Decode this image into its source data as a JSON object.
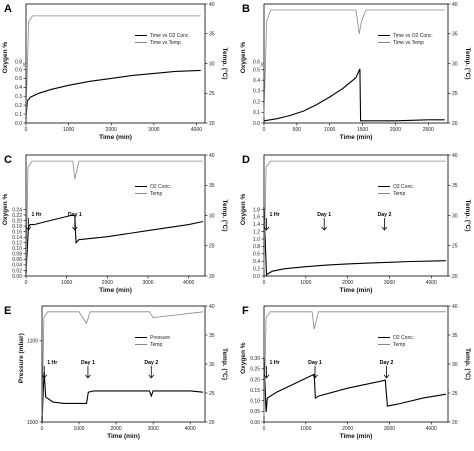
{
  "chart_data": [
    {
      "type": "line",
      "panel": "A",
      "xlabel": "Time (min)",
      "ylabel_left": "Oxygen %",
      "ylabel_right": "Temp. (°C)",
      "xlim": [
        0,
        4200
      ],
      "xticks": [
        0,
        1000,
        2000,
        3000,
        4000
      ],
      "left_axis": {
        "ticks": [
          "0.0",
          "0.1",
          "0.2",
          "0.3",
          "0.4",
          "0.5",
          "0.6"
        ],
        "extra_tick": "0.8",
        "ylim": [
          0,
          0.6
        ]
      },
      "right_axis": {
        "ticks": [
          "20",
          "25",
          "30",
          "35",
          "40"
        ],
        "ylim": [
          20,
          40
        ]
      },
      "legend": [
        "Time vs O2 Conc.",
        "Time vs Temp"
      ],
      "legend_position": "right",
      "series": [
        {
          "name": "Time vs O2 Conc.",
          "axis": "left",
          "color": "#000000",
          "x": [
            0,
            30,
            100,
            300,
            600,
            1000,
            1500,
            2000,
            2500,
            3000,
            3500,
            4100
          ],
          "y": [
            0.05,
            0.22,
            0.26,
            0.3,
            0.34,
            0.38,
            0.42,
            0.45,
            0.48,
            0.5,
            0.52,
            0.53
          ]
        },
        {
          "name": "Time vs Temp",
          "axis": "right",
          "color": "#888888",
          "x": [
            0,
            60,
            150,
            400,
            800,
            1500,
            2500,
            3500,
            4100
          ],
          "y": [
            21,
            37,
            38,
            38,
            38,
            38,
            38,
            38,
            38
          ]
        }
      ],
      "annotations": []
    },
    {
      "type": "line",
      "panel": "B",
      "xlabel": "Time (min)",
      "ylabel_left": "Oxygen %",
      "ylabel_right": "Temp. (°C)",
      "xlim": [
        0,
        2800
      ],
      "xticks": [
        0,
        500,
        1000,
        1500,
        2000,
        2500
      ],
      "left_axis": {
        "ticks": [
          "0.0",
          "0.1",
          "0.2",
          "0.3",
          "0.4",
          "0.5"
        ],
        "extra_tick": "0.6",
        "ylim": [
          0,
          0.55
        ]
      },
      "right_axis": {
        "ticks": [
          "20",
          "25",
          "30",
          "35",
          "40"
        ],
        "ylim": [
          20,
          40
        ]
      },
      "legend": [
        "Time vs O2 Conc.",
        "Time vs Temp"
      ],
      "legend_position": "right",
      "series": [
        {
          "name": "Time vs O2 Conc.",
          "axis": "left",
          "color": "#000000",
          "x": [
            0,
            200,
            400,
            600,
            800,
            1000,
            1200,
            1400,
            1460,
            1470,
            1500,
            2000,
            2500,
            2750
          ],
          "y": [
            0.02,
            0.04,
            0.07,
            0.11,
            0.17,
            0.24,
            0.32,
            0.42,
            0.5,
            0.02,
            0.02,
            0.02,
            0.03,
            0.03
          ]
        },
        {
          "name": "Time vs Temp",
          "axis": "right",
          "color": "#888888",
          "x": [
            0,
            40,
            100,
            1400,
            1450,
            1480,
            1550,
            2000,
            2750
          ],
          "y": [
            21,
            37,
            39,
            39,
            35,
            37,
            39,
            39,
            39
          ]
        }
      ],
      "annotations": []
    },
    {
      "type": "line",
      "panel": "C",
      "xlabel": "Time (min)",
      "ylabel_left": "Oxygen %",
      "ylabel_right": "Temp. (°C)",
      "xlim": [
        0,
        4400
      ],
      "xticks": [
        0,
        1000,
        2000,
        3000,
        4000
      ],
      "left_axis": {
        "ticks": [
          "0.00",
          "0.02",
          "0.04",
          "0.06",
          "0.08",
          "0.10",
          "0.12",
          "0.14",
          "0.16",
          "0.18",
          "0.20",
          "0.22",
          "0.24"
        ],
        "ylim": [
          0,
          0.24
        ]
      },
      "right_axis": {
        "ticks": [
          "20",
          "25",
          "30",
          "35",
          "40"
        ],
        "ylim": [
          20,
          40
        ]
      },
      "legend": [
        "O2 Conc.",
        "Temp"
      ],
      "legend_position": "right",
      "series": [
        {
          "name": "O2 Conc.",
          "axis": "left",
          "color": "#000000",
          "x": [
            0,
            60,
            100,
            200,
            500,
            800,
            1100,
            1200,
            1230,
            1300,
            2000,
            3000,
            4000,
            4350
          ],
          "y": [
            0.01,
            0.16,
            0.17,
            0.17,
            0.18,
            0.19,
            0.2,
            0.2,
            0.11,
            0.12,
            0.13,
            0.15,
            0.17,
            0.18
          ]
        },
        {
          "name": "Temp",
          "axis": "right",
          "color": "#888888",
          "x": [
            0,
            50,
            150,
            1000,
            1150,
            1200,
            1300,
            2000,
            3000,
            4350
          ],
          "y": [
            21,
            38,
            39,
            39,
            39,
            36,
            39,
            39,
            39,
            39
          ]
        }
      ],
      "annotations": [
        {
          "text": "1 Hr",
          "x": 60,
          "y": 0.16
        },
        {
          "text": "Day 1",
          "x": 1200,
          "y": 0.2
        }
      ]
    },
    {
      "type": "line",
      "panel": "D",
      "xlabel": "Time (min)",
      "ylabel_left": "Oxygen %",
      "ylabel_right": "Temp. (°C)",
      "xlim": [
        0,
        4400
      ],
      "xticks": [
        0,
        1000,
        2000,
        3000,
        4000
      ],
      "left_axis": {
        "ticks": [
          "0.0",
          "0.2",
          "0.4",
          "0.6",
          "0.8",
          "1.0",
          "1.2",
          "1.4",
          "1.6",
          "1.8"
        ],
        "ylim": [
          0,
          1.8
        ]
      },
      "right_axis": {
        "ticks": [
          "20",
          "25",
          "30",
          "35",
          "40"
        ],
        "ylim": [
          20,
          40
        ]
      },
      "legend": [
        "O2 Conc.",
        "Temp"
      ],
      "legend_position": "right",
      "series": [
        {
          "name": "O2 Conc.",
          "axis": "left",
          "color": "#000000",
          "x": [
            0,
            60,
            80,
            200,
            500,
            1000,
            1500,
            2000,
            2500,
            3000,
            3500,
            4000,
            4350
          ],
          "y": [
            1.7,
            0.02,
            0.05,
            0.12,
            0.18,
            0.23,
            0.27,
            0.3,
            0.32,
            0.34,
            0.36,
            0.37,
            0.38
          ]
        },
        {
          "name": "Temp",
          "axis": "right",
          "color": "#888888",
          "x": [
            0,
            50,
            150,
            1000,
            2000,
            3000,
            4350
          ],
          "y": [
            21,
            38,
            39,
            39,
            39,
            39,
            39
          ]
        }
      ],
      "annotations": [
        {
          "text": "1 Hr",
          "x": 60,
          "y": 1.7
        },
        {
          "text": "Day 1",
          "x": 1440,
          "y": 0.3
        },
        {
          "text": "Day 2",
          "x": 2880,
          "y": 0.33
        }
      ]
    },
    {
      "type": "line",
      "panel": "E",
      "xlabel": "Time (min)",
      "ylabel_left": "Pressure (mbar)",
      "ylabel_right": "Temp. (°C)",
      "xlim": [
        0,
        4400
      ],
      "xticks": [
        0,
        1000,
        2000,
        3000,
        4000
      ],
      "left_axis": {
        "ticks": [
          "1000",
          "1100"
        ],
        "ylim": [
          960,
          1100
        ]
      },
      "right_axis": {
        "ticks": [
          "20",
          "25",
          "30",
          "35",
          "40"
        ],
        "ylim": [
          20,
          40
        ]
      },
      "legend": [
        "Pressure",
        "Temp"
      ],
      "legend_position": "right",
      "series": [
        {
          "name": "Pressure",
          "axis": "left",
          "color": "#000000",
          "x": [
            0,
            40,
            60,
            100,
            300,
            600,
            1000,
            1200,
            1250,
            1400,
            2000,
            2900,
            2950,
            3000,
            3500,
            4000,
            4350
          ],
          "y": [
            960,
            1020,
            1040,
            1000,
            992,
            990,
            990,
            990,
            1008,
            1010,
            1010,
            1010,
            1002,
            1010,
            1010,
            1010,
            1008
          ]
        },
        {
          "name": "Temp",
          "axis": "right",
          "color": "#888888",
          "x": [
            0,
            50,
            150,
            1000,
            1200,
            1300,
            2000,
            2900,
            3000,
            4350
          ],
          "y": [
            21,
            38,
            39,
            39,
            37,
            39,
            39,
            39,
            38,
            39
          ]
        }
      ],
      "annotations": [
        {
          "text": "1 Hr",
          "x": 60,
          "y": 990
        },
        {
          "text": "Day 1",
          "x": 1240,
          "y": 990
        },
        {
          "text": "Day 2",
          "x": 2950,
          "y": 990
        }
      ]
    },
    {
      "type": "line",
      "panel": "F",
      "xlabel": "Time (min)",
      "ylabel_left": "Oxygen %",
      "ylabel_right": "Temp. (°C)",
      "xlim": [
        0,
        4400
      ],
      "xticks": [
        0,
        1000,
        2000,
        3000,
        4000
      ],
      "left_axis": {
        "ticks": [
          "0.00",
          "0.05",
          "0.10",
          "0.15",
          "0.20",
          "0.25",
          "0.30"
        ],
        "ylim": [
          0,
          0.35
        ]
      },
      "right_axis": {
        "ticks": [
          "20",
          "25",
          "30",
          "35",
          "40"
        ],
        "ylim": [
          20,
          40
        ]
      },
      "legend": [
        "O2 Conc.",
        "Temp"
      ],
      "legend_position": "right",
      "series": [
        {
          "name": "O2 Conc.",
          "axis": "left",
          "color": "#000000",
          "x": [
            0,
            50,
            80,
            300,
            700,
            1000,
            1200,
            1230,
            1300,
            2000,
            2900,
            2950,
            3200,
            3800,
            4350
          ],
          "y": [
            0.32,
            0.05,
            0.12,
            0.15,
            0.19,
            0.22,
            0.24,
            0.12,
            0.13,
            0.17,
            0.21,
            0.08,
            0.09,
            0.12,
            0.14
          ]
        },
        {
          "name": "Temp",
          "axis": "right",
          "color": "#888888",
          "x": [
            0,
            50,
            150,
            1000,
            1150,
            1200,
            1300,
            2000,
            3000,
            4350
          ],
          "y": [
            21,
            38,
            39,
            39,
            39,
            36,
            39,
            39,
            39,
            39
          ]
        }
      ],
      "annotations": [
        {
          "text": "1 Hr",
          "x": 60,
          "y": 0.32
        },
        {
          "text": "Day 1",
          "x": 1220,
          "y": 0.24
        },
        {
          "text": "Day 2",
          "x": 2930,
          "y": 0.21
        }
      ]
    }
  ]
}
